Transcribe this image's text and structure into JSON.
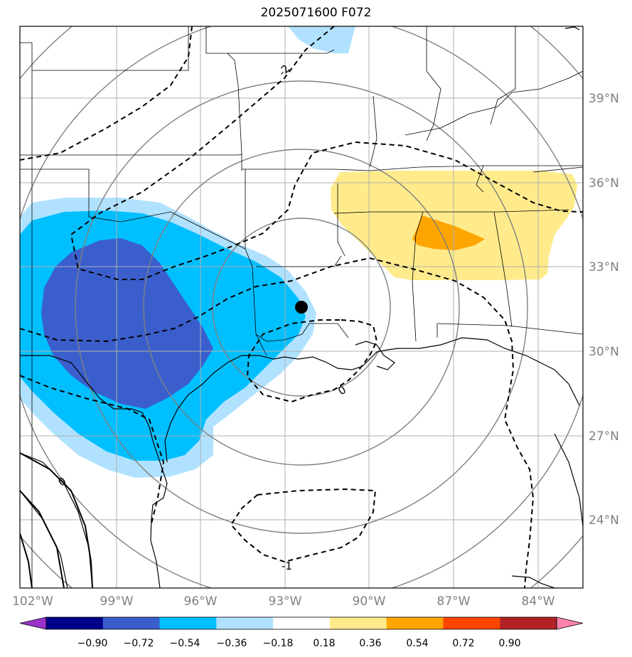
{
  "title": "2025071600 F072",
  "map": {
    "lon_ticks": [
      "102°W",
      "99°W",
      "96°W",
      "93°W",
      "90°W",
      "87°W",
      "84°W"
    ],
    "lat_ticks": [
      "39°N",
      "36°N",
      "33°N",
      "30°N",
      "27°N",
      "24°N"
    ],
    "contour_labels": [
      "-2",
      "0",
      "0",
      "-1"
    ],
    "marker": {
      "name": "point",
      "color": "#000000"
    }
  },
  "colorbar": {
    "ticks": [
      "−0.90",
      "−0.72",
      "−0.54",
      "−0.36",
      "−0.18",
      "0.18",
      "0.36",
      "0.54",
      "0.72",
      "0.90"
    ],
    "colors": [
      "#9932cc",
      "#00008b",
      "#3a5fcd",
      "#00bfff",
      "#b0e2ff",
      "#ffffff",
      "#ffeb8b",
      "#ffa500",
      "#ff4500",
      "#b22222",
      "#ff82ab"
    ]
  }
}
